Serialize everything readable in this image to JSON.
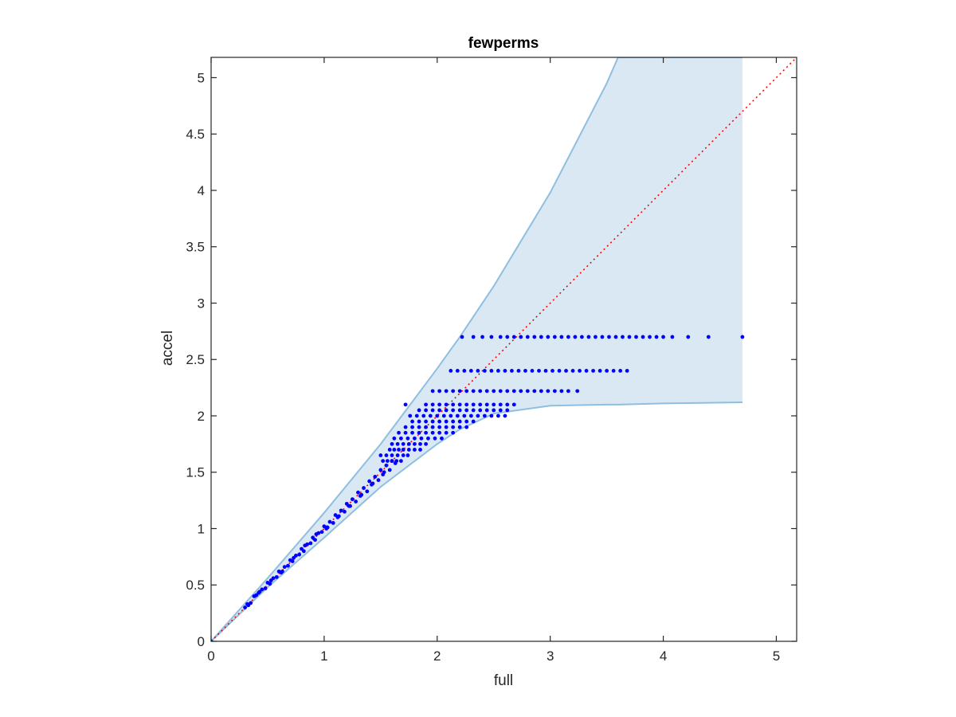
{
  "chart_data": {
    "type": "scatter",
    "title": "fewperms",
    "xlabel": "full",
    "ylabel": "accel",
    "xlim": [
      0,
      5.18
    ],
    "ylim": [
      0,
      5.18
    ],
    "xticks": [
      0,
      1,
      2,
      3,
      4,
      5
    ],
    "yticks": [
      0,
      0.5,
      1,
      1.5,
      2,
      2.5,
      3,
      3.5,
      4,
      4.5,
      5
    ],
    "grid": false,
    "legend": "none",
    "colors": {
      "points": "#0000ff",
      "band_fill": "#d9e8f3",
      "band_edge": "#8ebfe0",
      "reference_line": "#ff0000",
      "axes": "#262626"
    },
    "reference_line": {
      "style": "dotted",
      "x": [
        0,
        5.18
      ],
      "y": [
        0,
        5.18
      ]
    },
    "band": {
      "x": [
        0,
        0.5,
        1.0,
        1.5,
        2.0,
        2.2,
        2.5,
        3.0,
        3.5,
        3.6,
        4.0,
        4.7
      ],
      "upper": [
        0,
        0.56,
        1.14,
        1.75,
        2.42,
        2.7,
        3.15,
        3.98,
        4.95,
        5.18,
        5.18,
        5.18
      ],
      "lower": [
        0,
        0.48,
        0.92,
        1.37,
        1.75,
        1.88,
        2.02,
        2.09,
        2.1,
        2.1,
        2.11,
        2.12
      ]
    },
    "series": [
      {
        "x": [
          0.3,
          0.32,
          0.35,
          0.38,
          0.4,
          0.42,
          0.45,
          0.48,
          0.5,
          0.52,
          0.55,
          0.58,
          0.6,
          0.62,
          0.65,
          0.68,
          0.7,
          0.72,
          0.75,
          0.78,
          0.8,
          0.82,
          0.85,
          0.88,
          0.9,
          0.92,
          0.95,
          0.98,
          1.0,
          1.02,
          1.05,
          1.08,
          1.1,
          1.12,
          1.15,
          1.18,
          1.2,
          1.22,
          1.25,
          1.28,
          1.3,
          1.32,
          1.35,
          1.38,
          1.4,
          1.42,
          1.45,
          1.48,
          1.5,
          1.52,
          1.55,
          1.58,
          1.6,
          0.33,
          0.43,
          0.53,
          0.63,
          0.73,
          0.83,
          0.93,
          1.03,
          1.13,
          1.23,
          1.33,
          1.43,
          1.53,
          1.63
        ],
        "y": [
          0.3,
          0.33,
          0.34,
          0.4,
          0.41,
          0.43,
          0.46,
          0.47,
          0.52,
          0.51,
          0.56,
          0.57,
          0.62,
          0.61,
          0.66,
          0.67,
          0.72,
          0.71,
          0.76,
          0.77,
          0.82,
          0.8,
          0.86,
          0.87,
          0.92,
          0.9,
          0.96,
          0.97,
          1.02,
          1.0,
          1.06,
          1.05,
          1.12,
          1.1,
          1.16,
          1.15,
          1.22,
          1.2,
          1.26,
          1.24,
          1.32,
          1.29,
          1.36,
          1.33,
          1.42,
          1.39,
          1.46,
          1.43,
          1.52,
          1.48,
          1.56,
          1.52,
          1.6,
          0.32,
          0.44,
          0.54,
          0.62,
          0.74,
          0.85,
          0.95,
          1.01,
          1.11,
          1.2,
          1.3,
          1.4,
          1.5,
          1.58
        ]
      },
      {
        "levels": [
          {
            "y": 1.6,
            "x": [
              1.52,
              1.56,
              1.6,
              1.64,
              1.68
            ]
          },
          {
            "y": 1.65,
            "x": [
              1.5,
              1.55,
              1.6,
              1.65,
              1.7,
              1.74
            ]
          },
          {
            "y": 1.7,
            "x": [
              1.58,
              1.62,
              1.66,
              1.7,
              1.75,
              1.8,
              1.85
            ]
          },
          {
            "y": 1.75,
            "x": [
              1.6,
              1.65,
              1.7,
              1.75,
              1.8,
              1.85,
              1.9
            ]
          },
          {
            "y": 1.8,
            "x": [
              1.62,
              1.68,
              1.74,
              1.8,
              1.86,
              1.92,
              1.98,
              2.04
            ]
          },
          {
            "y": 1.85,
            "x": [
              1.66,
              1.72,
              1.78,
              1.84,
              1.9,
              1.96,
              2.02,
              2.08,
              2.14
            ]
          },
          {
            "y": 1.9,
            "x": [
              1.72,
              1.78,
              1.84,
              1.9,
              1.96,
              2.02,
              2.08,
              2.14,
              2.2,
              2.26
            ]
          },
          {
            "y": 1.95,
            "x": [
              1.78,
              1.84,
              1.9,
              1.96,
              2.02,
              2.08,
              2.14,
              2.2,
              2.26,
              2.32
            ]
          },
          {
            "y": 2.0,
            "x": [
              1.76,
              1.82,
              1.88,
              1.94,
              2.0,
              2.06,
              2.12,
              2.18,
              2.24,
              2.3,
              2.36,
              2.42,
              2.48,
              2.54,
              2.6
            ]
          },
          {
            "y": 2.05,
            "x": [
              1.84,
              1.9,
              1.96,
              2.02,
              2.08,
              2.14,
              2.2,
              2.26,
              2.32,
              2.38,
              2.44,
              2.5,
              2.56,
              2.62
            ]
          },
          {
            "y": 2.1,
            "x": [
              1.72,
              1.9,
              1.96,
              2.02,
              2.08,
              2.14,
              2.2,
              2.26,
              2.32,
              2.38,
              2.44,
              2.5,
              2.56,
              2.62,
              2.68
            ]
          },
          {
            "y": 2.22,
            "x": [
              1.96,
              2.02,
              2.08,
              2.14,
              2.2,
              2.26,
              2.32,
              2.38,
              2.44,
              2.5,
              2.56,
              2.62,
              2.68,
              2.74,
              2.8,
              2.86,
              2.92,
              2.98,
              3.04,
              3.1,
              3.16,
              3.24
            ]
          },
          {
            "y": 2.4,
            "x": [
              2.12,
              2.18,
              2.24,
              2.3,
              2.36,
              2.42,
              2.48,
              2.54,
              2.6,
              2.66,
              2.72,
              2.78,
              2.84,
              2.9,
              2.96,
              3.02,
              3.08,
              3.14,
              3.2,
              3.26,
              3.32,
              3.38,
              3.44,
              3.5,
              3.56,
              3.62,
              3.68
            ]
          },
          {
            "y": 2.7,
            "x": [
              2.22,
              2.32,
              2.4,
              2.48,
              2.56,
              2.62,
              2.68,
              2.74,
              2.8,
              2.86,
              2.92,
              2.98,
              3.04,
              3.1,
              3.16,
              3.22,
              3.28,
              3.34,
              3.4,
              3.46,
              3.52,
              3.58,
              3.64,
              3.7,
              3.76,
              3.82,
              3.88,
              3.94,
              4.0,
              4.08,
              4.22,
              4.4,
              4.7
            ]
          }
        ]
      }
    ]
  }
}
